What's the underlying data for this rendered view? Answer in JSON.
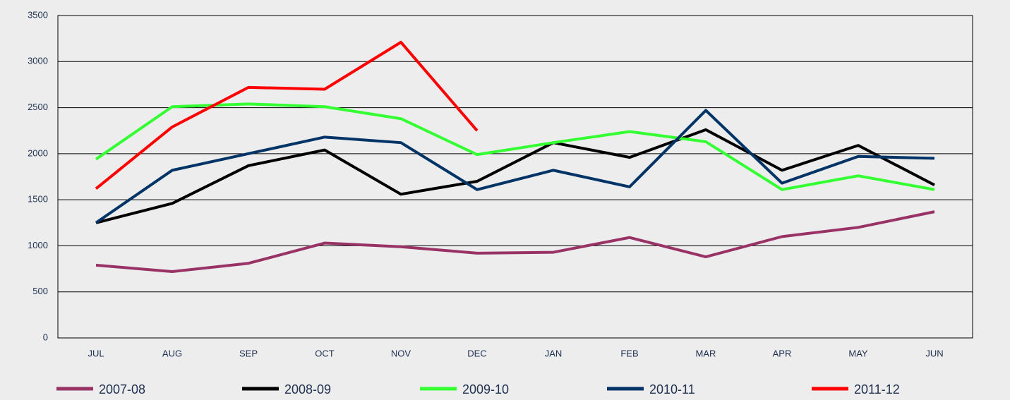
{
  "chart_data": {
    "type": "line",
    "categories": [
      "JUL",
      "AUG",
      "SEP",
      "OCT",
      "NOV",
      "DEC",
      "JAN",
      "FEB",
      "MAR",
      "APR",
      "MAY",
      "JUN"
    ],
    "series": [
      {
        "name": "2007-08",
        "color": "#993366",
        "values": [
          790,
          720,
          810,
          1030,
          990,
          920,
          930,
          1090,
          880,
          1100,
          1200,
          1370
        ]
      },
      {
        "name": "2008-09",
        "color": "#000000",
        "values": [
          1250,
          1460,
          1870,
          2040,
          1560,
          1700,
          2120,
          1960,
          2260,
          1820,
          2090,
          1660
        ]
      },
      {
        "name": "2009-10",
        "color": "#33ff33",
        "values": [
          1940,
          2510,
          2540,
          2510,
          2380,
          1990,
          2120,
          2240,
          2130,
          1610,
          1760,
          1610
        ]
      },
      {
        "name": "2010-11",
        "color": "#003366",
        "values": [
          1250,
          1820,
          2000,
          2180,
          2120,
          1610,
          1820,
          1640,
          2470,
          1680,
          1970,
          1950
        ]
      },
      {
        "name": "2011-12",
        "color": "#ff0000",
        "values": [
          1620,
          2290,
          2720,
          2700,
          3210,
          2250,
          null,
          null,
          null,
          null,
          null,
          null
        ]
      }
    ],
    "ylim": [
      0,
      3500
    ],
    "yticks": [
      0,
      500,
      1000,
      1500,
      2000,
      2500,
      3000,
      3500
    ],
    "grid": true,
    "legend": "bottom"
  }
}
